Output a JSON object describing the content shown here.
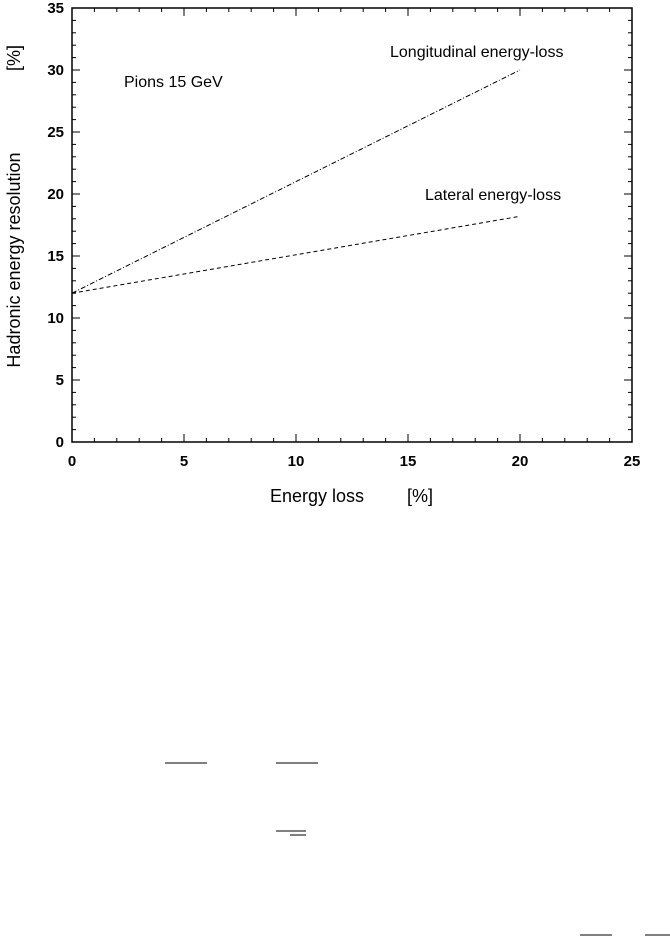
{
  "chart_data": {
    "type": "line",
    "xlabel": "Energy loss",
    "xunit": "[%]",
    "ylabel": "Hadronic energy resolution",
    "yunit": "[%]",
    "xlim": [
      0,
      25
    ],
    "ylim": [
      0,
      35
    ],
    "xticks": [
      "0",
      "5",
      "10",
      "15",
      "20",
      "25"
    ],
    "yticks": [
      "0",
      "5",
      "10",
      "15",
      "20",
      "25",
      "30",
      "35"
    ],
    "x_major_step": 5,
    "x_minor_step": 1,
    "y_major_step": 5,
    "y_minor_step": 1,
    "grid": false,
    "annotation": "Pions 15 GeV",
    "series": [
      {
        "name": "Longitudinal energy-loss",
        "style": "dash-dot",
        "x": [
          0,
          20
        ],
        "y": [
          12,
          30
        ]
      },
      {
        "name": "Lateral energy-loss",
        "style": "dashed",
        "x": [
          0,
          20
        ],
        "y": [
          12,
          18.2
        ]
      }
    ]
  }
}
